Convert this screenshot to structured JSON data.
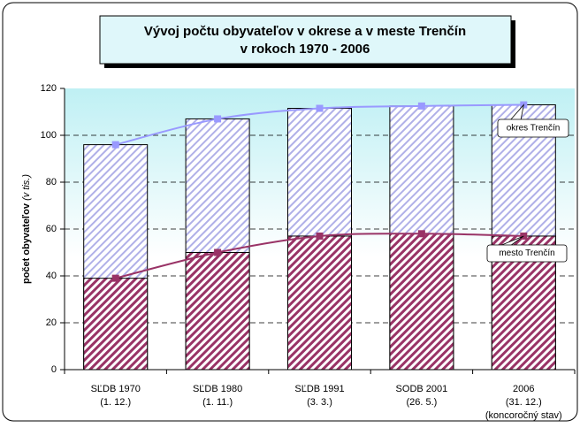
{
  "chart_data": {
    "type": "bar-line",
    "title": [
      "Vývoj počtu obyvateľov v okrese a v meste Trenčín",
      "v rokoch 1970 - 2006"
    ],
    "y_label": "počet obyvateľov",
    "y_label_unit": "(v tis.)",
    "categories": [
      [
        "SĽDB 1970",
        "(1. 12.)"
      ],
      [
        "SĽDB 1980",
        "(1. 11.)"
      ],
      [
        "SĽDB 1991",
        "(3. 3.)"
      ],
      [
        "SODB 2001",
        "(26. 5.)"
      ],
      [
        "2006",
        "(31. 12.)",
        "(koncoročný stav)"
      ]
    ],
    "series": [
      {
        "name": "okres Trenčín",
        "color": "#9999ff",
        "hatch": "#b0b0e8",
        "values": [
          96,
          107,
          111.5,
          112.5,
          113
        ]
      },
      {
        "name": "mesto Trenčín",
        "color": "#993366",
        "hatch": "#993366",
        "values": [
          39,
          50,
          57,
          58,
          57
        ]
      }
    ],
    "ylim": [
      0,
      120
    ],
    "yticks": [
      0,
      20,
      40,
      60,
      80,
      100,
      120
    ],
    "grid": true
  }
}
